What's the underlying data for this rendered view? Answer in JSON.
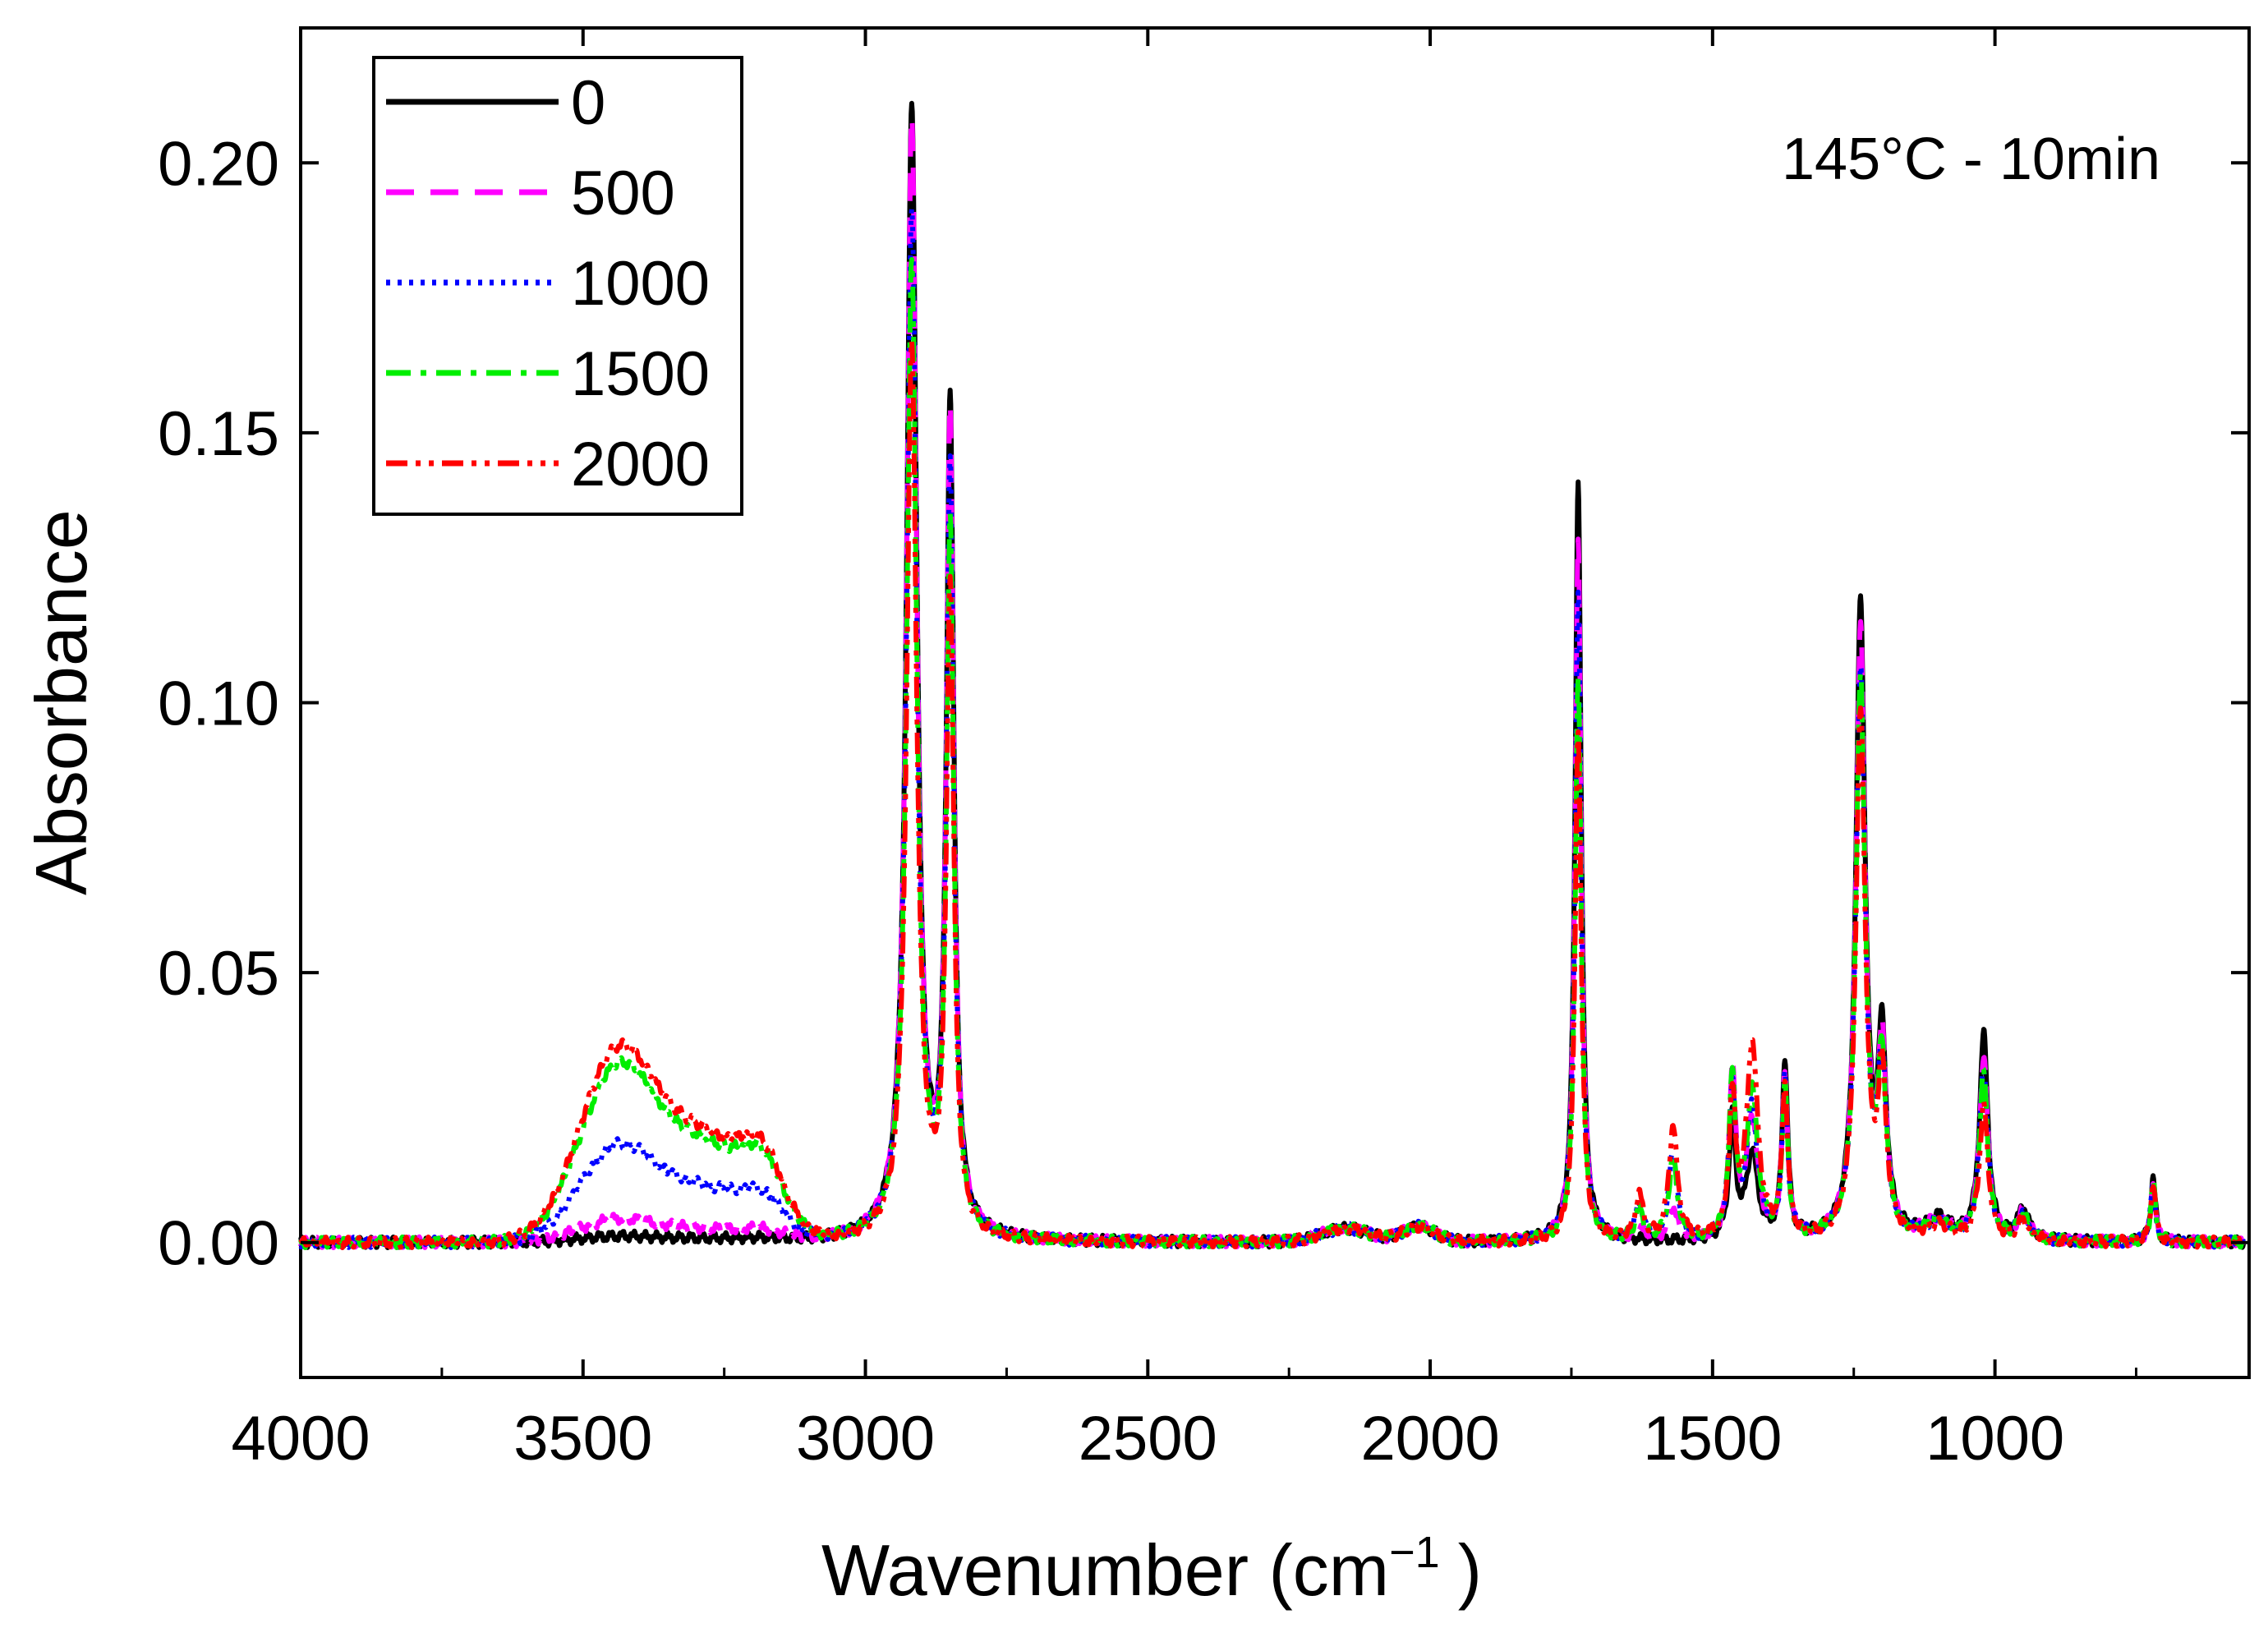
{
  "chart_data": {
    "type": "line",
    "title": "",
    "annotation": "145°C - 10min",
    "xlabel": "Wavenumber (cm",
    "xlabel_sup": "−1",
    "xlabel_close": ")",
    "ylabel": "Absorbance",
    "xlim": [
      4000,
      550
    ],
    "ylim": [
      -0.025,
      0.225
    ],
    "x_reversed": true,
    "xticks": [
      4000,
      3500,
      3000,
      2500,
      2000,
      1500,
      1000
    ],
    "xtick_labels": [
      "4000",
      "3500",
      "3000",
      "2500",
      "2000",
      "1500",
      "1000"
    ],
    "yticks": [
      0.0,
      0.05,
      0.1,
      0.15,
      0.2
    ],
    "ytick_labels": [
      "0.00",
      "0.05",
      "0.10",
      "0.15",
      "0.20"
    ],
    "grid": false,
    "legend_position": "top-left",
    "series": [
      {
        "name": "0",
        "color": "#000000",
        "dash": "solid",
        "peaks": {
          "oh_band": 0.001,
          "p2920": 0.209,
          "p2850": 0.153,
          "p1740": 0.141,
          "p1470": 0.022,
          "p1435": 0.016,
          "p1375": 0.033,
          "p1240": 0.117,
          "p1025": 0.038,
          "p720": 0.012,
          "p1560": 0.0
        }
      },
      {
        "name": "500",
        "color": "#ff00ff",
        "dash": "dashed",
        "peaks": {
          "oh_band": 0.004,
          "p2920": 0.206,
          "p2850": 0.15,
          "p1740": 0.13,
          "p1470": 0.031,
          "p1435": 0.022,
          "p1375": 0.03,
          "p1240": 0.112,
          "p1025": 0.034,
          "p720": 0.011,
          "p1560": 0.006
        }
      },
      {
        "name": "1000",
        "color": "#0000ff",
        "dash": "dotted",
        "peaks": {
          "oh_band": 0.017,
          "p2920": 0.19,
          "p2850": 0.14,
          "p1740": 0.12,
          "p1470": 0.028,
          "p1435": 0.024,
          "p1375": 0.029,
          "p1240": 0.105,
          "p1025": 0.032,
          "p720": 0.011,
          "p1560": 0.016
        }
      },
      {
        "name": "1500",
        "color": "#00ee00",
        "dash": "dashdot",
        "peaks": {
          "oh_band": 0.031,
          "p2920": 0.181,
          "p2850": 0.13,
          "p1740": 0.105,
          "p1470": 0.029,
          "p1435": 0.027,
          "p1375": 0.028,
          "p1240": 0.104,
          "p1025": 0.031,
          "p720": 0.011,
          "p1560": 0.015
        }
      },
      {
        "name": "2000",
        "color": "#ff0000",
        "dash": "dashdotdot",
        "peaks": {
          "oh_band": 0.034,
          "p2920": 0.165,
          "p2850": 0.12,
          "p1740": 0.095,
          "p1470": 0.025,
          "p1435": 0.036,
          "p1375": 0.028,
          "p1240": 0.097,
          "p1025": 0.025,
          "p720": 0.011,
          "p1560": 0.021
        }
      }
    ]
  }
}
